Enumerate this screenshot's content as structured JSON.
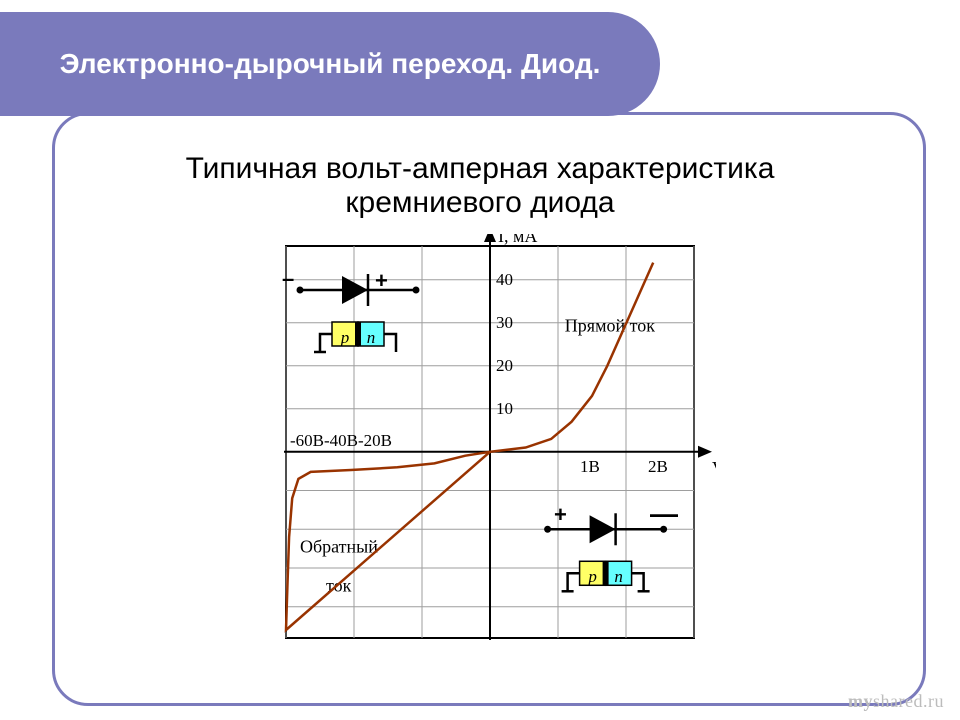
{
  "slide": {
    "title": "Электронно-дырочный переход. Диод.",
    "subtitle_line1": "Типичная вольт-амперная характеристика",
    "subtitle_line2": "кремниевого диода",
    "accent_color": "#7a7abc",
    "title_color": "#3f3f7a",
    "body_text_color": "#000000"
  },
  "chart": {
    "type": "line",
    "background_color": "#ffffff",
    "grid_color": "#9e9e9e",
    "curve_color": "#993300",
    "x_axis_label": "V",
    "y_axis_label": "I, мА",
    "x_ticks_pos": [
      "1В",
      "2В"
    ],
    "x_ticks_neg": [
      "-60В",
      "-40В",
      "-20В"
    ],
    "y_ticks": [
      10,
      20,
      30,
      40
    ],
    "region_forward": "Прямой ток",
    "region_reverse_l1": "Обратный",
    "region_reverse_l2": "ток",
    "forward_curve": [
      [
        0,
        0
      ],
      [
        0.35,
        1
      ],
      [
        0.6,
        3
      ],
      [
        0.8,
        7
      ],
      [
        1.0,
        13
      ],
      [
        1.15,
        20
      ],
      [
        1.3,
        28
      ],
      [
        1.45,
        36
      ],
      [
        1.6,
        44
      ]
    ],
    "reverse_curve": [
      [
        0,
        0
      ],
      [
        -8,
        -1
      ],
      [
        -18,
        -3
      ],
      [
        -30,
        -4
      ],
      [
        -45,
        -4.7
      ],
      [
        -58,
        -5.2
      ],
      [
        -62,
        -7
      ],
      [
        -64,
        -12
      ],
      [
        -65,
        -22
      ],
      [
        -65.5,
        -34
      ],
      [
        -66,
        -46
      ]
    ],
    "xlim_pos": [
      0,
      2
    ],
    "xlim_neg": [
      -66,
      0
    ],
    "ylim": [
      -46,
      46
    ]
  },
  "diode": {
    "minus": "–",
    "plus": "+",
    "p_label": "p",
    "n_label": "n",
    "p_color": "#ffff66",
    "n_color": "#66ffff"
  },
  "watermark": {
    "brand_prefix": "my",
    "brand_rest": "shared.ru"
  }
}
